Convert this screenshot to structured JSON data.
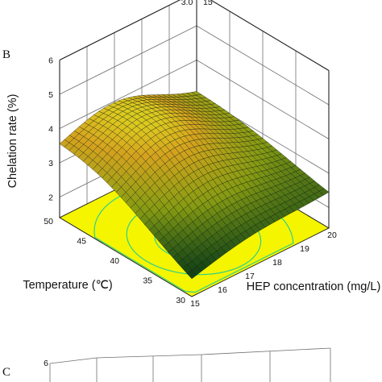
{
  "panels": {
    "b": "B",
    "c": "C"
  },
  "top_labels": [
    "3.0",
    "15"
  ],
  "chart_data": [
    {
      "type": "surface",
      "panel": "B",
      "xlabel": "HEP concentration (mg/L)",
      "ylabel": "Temperature (℃)",
      "zlabel": "Chelation rate (%)",
      "x_ticks": [
        "15",
        "16",
        "17",
        "18",
        "19",
        "20"
      ],
      "y_ticks": [
        "30",
        "35",
        "40",
        "45",
        "50"
      ],
      "z_ticks": [
        "2",
        "3",
        "4",
        "5",
        "6"
      ],
      "xlim": [
        15,
        20
      ],
      "ylim": [
        30,
        50
      ],
      "zlim": [
        1.4,
        6
      ],
      "peak": {
        "x": 17,
        "y": 44,
        "z": 4.0
      },
      "corner_values": [
        {
          "x": 15,
          "y": 50,
          "z": 3.1
        },
        {
          "x": 20,
          "y": 50,
          "z": 2.9
        },
        {
          "x": 20,
          "y": 30,
          "z": 2.4
        },
        {
          "x": 15,
          "y": 30,
          "z": 1.8
        }
      ],
      "colormap": [
        "#002a00",
        "#1e9b3a",
        "#c7e61d",
        "#f5a623",
        "#d83a1a"
      ],
      "floor_color": "#f5f500",
      "contour_color": "#2fd08a",
      "grid": true
    },
    {
      "type": "surface",
      "panel": "C",
      "z_ticks": [
        "6"
      ],
      "grid": true
    }
  ]
}
